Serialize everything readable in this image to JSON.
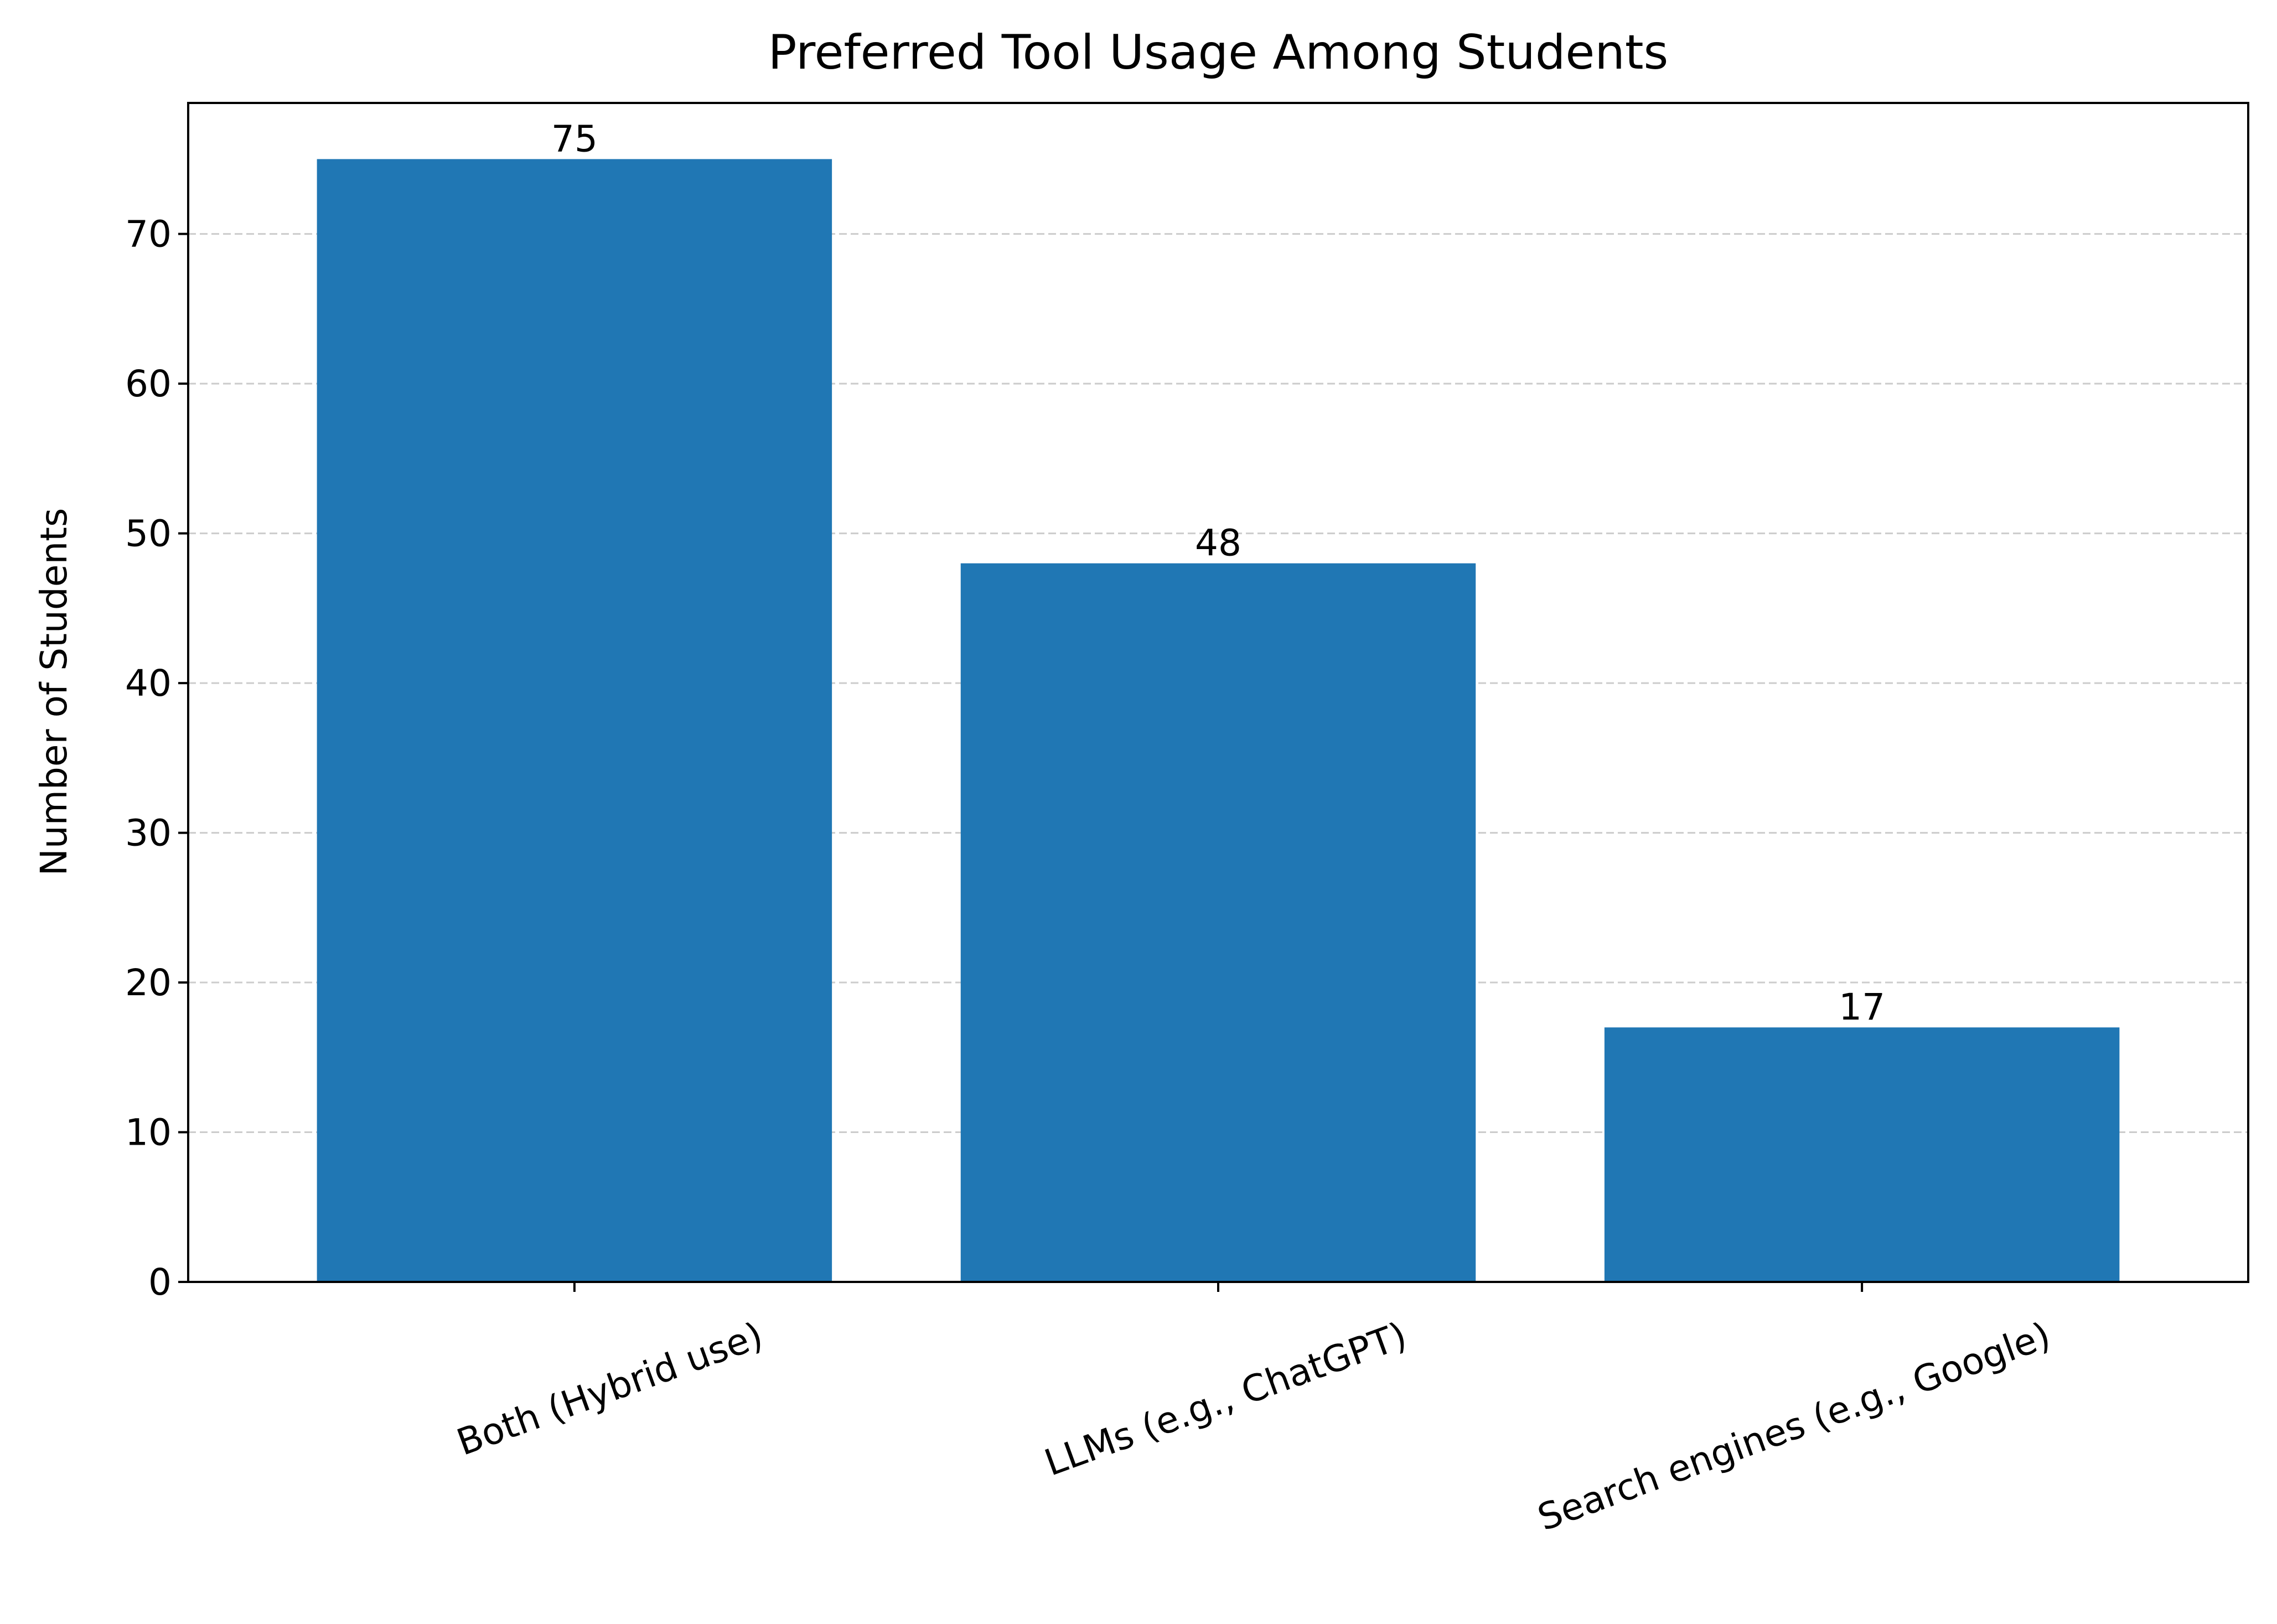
{
  "chart_data": {
    "type": "bar",
    "title": "Preferred Tool Usage Among Students",
    "xlabel": "",
    "ylabel": "Number of Students",
    "categories": [
      "Both (Hybrid use)",
      "LLMs (e.g., ChatGPT)",
      "Search engines (e.g., Google)"
    ],
    "values": [
      75,
      48,
      17
    ],
    "data_labels": [
      "75",
      "48",
      "17"
    ],
    "ylim": [
      0,
      78.75
    ],
    "yticks": [
      0,
      10,
      20,
      30,
      40,
      50,
      60,
      70
    ],
    "grid": "y-dashed",
    "legend": "none",
    "bar_color": "#2077b4",
    "grid_color": "#cccccc"
  }
}
